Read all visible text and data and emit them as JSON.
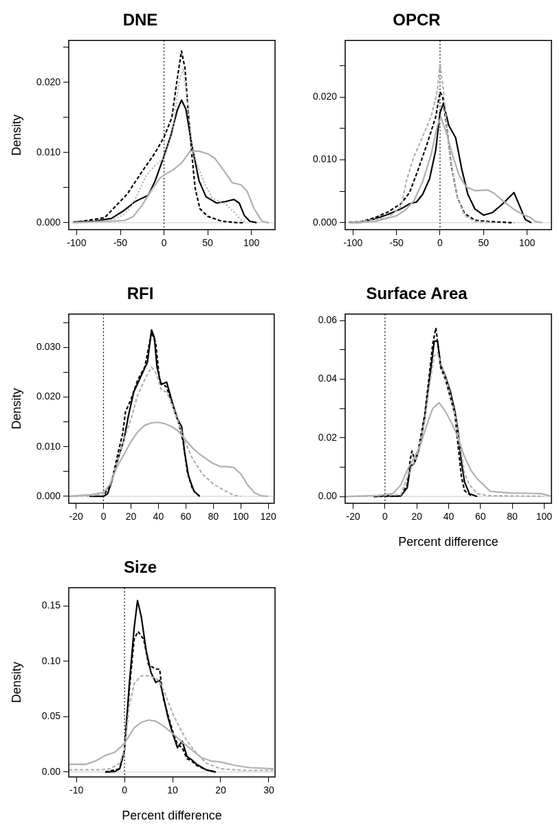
{
  "chart_data": [
    {
      "type": "line",
      "title": "DNE",
      "ylabel": "Density",
      "xlim": [
        -109,
        127
      ],
      "ylim": [
        -0.001,
        0.026
      ],
      "xticks": [
        -100,
        -50,
        0,
        50,
        100
      ],
      "yticks": [
        {
          "value": 0,
          "label": "0.000"
        },
        {
          "value": 0.005,
          "label": null
        },
        {
          "value": 0.01,
          "label": "0.010"
        },
        {
          "value": 0.015,
          "label": null
        },
        {
          "value": 0.02,
          "label": "0.020"
        },
        {
          "value": 0.025,
          "label": null
        }
      ],
      "ref_lines": [
        {
          "axis": "y",
          "value": 0,
          "color": "#d3d3d3",
          "line_style": "solid"
        },
        {
          "axis": "x",
          "value": 0,
          "color": "#000000",
          "line_style": "dotted"
        }
      ],
      "series": [
        {
          "color": "#b0b0b0",
          "line_style": "solid",
          "x": [
            -104,
            -60,
            -45,
            -35,
            -25,
            -15,
            -5,
            0,
            10,
            20,
            30,
            40,
            50,
            58,
            68,
            78,
            88,
            95,
            103,
            112,
            120
          ],
          "values": [
            0,
            0.0002,
            0.0003,
            0.0009,
            0.0025,
            0.0045,
            0.0063,
            0.0068,
            0.0075,
            0.0085,
            0.0102,
            0.0102,
            0.0098,
            0.0092,
            0.0075,
            0.0057,
            0.0054,
            0.0045,
            0.002,
            0.0002,
            0
          ]
        },
        {
          "color": "#b0b0b0",
          "line_style": "dotted",
          "x": [
            -104,
            -60,
            -45,
            -35,
            -20,
            -10,
            0,
            10,
            17,
            22,
            27,
            32,
            37,
            45,
            55,
            70,
            80,
            88,
            95
          ],
          "values": [
            0,
            0.0003,
            0.0012,
            0.0028,
            0.0068,
            0.0082,
            0.0092,
            0.013,
            0.02,
            0.022,
            0.017,
            0.011,
            0.0086,
            0.006,
            0.0035,
            0.0027,
            0.0015,
            0.0004,
            0
          ]
        },
        {
          "color": "#000000",
          "line_style": "solid",
          "x": [
            -104,
            -80,
            -60,
            -45,
            -33,
            -25,
            -18,
            -10,
            0,
            8,
            15,
            20,
            25,
            32,
            40,
            48,
            60,
            70,
            80,
            86,
            92,
            98,
            106
          ],
          "values": [
            0.0001,
            0.0002,
            0.0006,
            0.0018,
            0.003,
            0.0035,
            0.0039,
            0.006,
            0.0095,
            0.0125,
            0.016,
            0.0175,
            0.0162,
            0.011,
            0.006,
            0.0037,
            0.0028,
            0.003,
            0.0033,
            0.0028,
            0.001,
            0.0002,
            0
          ]
        },
        {
          "color": "#000000",
          "line_style": "dashed",
          "x": [
            -104,
            -68,
            -42,
            -24,
            -10.5,
            0,
            9,
            14.5,
            20,
            24,
            27.6,
            31.6,
            35.5,
            41,
            50,
            66,
            84,
            92
          ],
          "values": [
            0,
            0.0007,
            0.0041,
            0.0075,
            0.0099,
            0.0122,
            0.015,
            0.02,
            0.0245,
            0.022,
            0.016,
            0.01,
            0.005,
            0.002,
            0.0009,
            0.0002,
            0,
            0
          ]
        }
      ]
    },
    {
      "type": "line",
      "title": "OPCR",
      "xlim": [
        -109,
        128
      ],
      "ylim": [
        -0.0011,
        0.029
      ],
      "xticks": [
        -100,
        -50,
        0,
        50,
        100
      ],
      "yticks": [
        {
          "value": 0,
          "label": "0.000"
        },
        {
          "value": 0.005,
          "label": null
        },
        {
          "value": 0.01,
          "label": "0.010"
        },
        {
          "value": 0.015,
          "label": null
        },
        {
          "value": 0.02,
          "label": "0.020"
        },
        {
          "value": 0.025,
          "label": null
        }
      ],
      "ref_lines": [
        {
          "axis": "y",
          "value": 0,
          "color": "#d3d3d3",
          "line_style": "solid"
        },
        {
          "axis": "x",
          "value": 0,
          "color": "#000000",
          "line_style": "dotted"
        }
      ],
      "series": [
        {
          "color": "#b0b0b0",
          "line_style": "solid",
          "x": [
            -105,
            -75,
            -50,
            -40,
            -30,
            -20,
            -10,
            -3,
            1,
            8,
            15,
            22,
            30,
            40,
            55,
            62,
            72,
            85,
            95,
            103,
            110,
            117
          ],
          "values": [
            0,
            0.0002,
            0.0011,
            0.002,
            0.0035,
            0.0065,
            0.011,
            0.0155,
            0.0168,
            0.014,
            0.0105,
            0.0075,
            0.0057,
            0.0051,
            0.0052,
            0.0047,
            0.0035,
            0.0021,
            0.0013,
            0.0009,
            0.0002,
            0
          ]
        },
        {
          "color": "#b0b0b0",
          "line_style": "dashed",
          "x": [
            -100,
            -60,
            -45,
            -38,
            -30,
            -20,
            -10,
            -3,
            0,
            4,
            10,
            15,
            20,
            28,
            40,
            60
          ],
          "values": [
            0,
            0.0008,
            0.0025,
            0.007,
            0.0105,
            0.0137,
            0.017,
            0.021,
            0.0254,
            0.021,
            0.012,
            0.0075,
            0.004,
            0.0012,
            0.0002,
            0
          ]
        },
        {
          "color": "#000000",
          "line_style": "solid",
          "x": [
            -105,
            -90,
            -75,
            -60,
            -45,
            -35,
            -27,
            -20,
            -12,
            -5,
            0,
            4,
            10,
            18,
            25,
            32,
            40,
            50,
            60,
            72,
            85,
            92,
            98,
            105
          ],
          "values": [
            0,
            0.0001,
            0.0006,
            0.0013,
            0.0022,
            0.003,
            0.0033,
            0.0045,
            0.007,
            0.0115,
            0.0175,
            0.019,
            0.0155,
            0.0135,
            0.0085,
            0.0045,
            0.0022,
            0.0012,
            0.0016,
            0.003,
            0.0048,
            0.0025,
            0.0005,
            0
          ]
        },
        {
          "color": "#000000",
          "line_style": "dashed",
          "x": [
            -105,
            -90,
            -75,
            -60,
            -45,
            -35,
            -25,
            -15,
            -5,
            0,
            3,
            8,
            13,
            20,
            28,
            40,
            55,
            70,
            85
          ],
          "values": [
            0,
            0.0002,
            0.0008,
            0.0017,
            0.003,
            0.0048,
            0.0085,
            0.0125,
            0.0168,
            0.0208,
            0.02,
            0.015,
            0.009,
            0.004,
            0.0015,
            0.0004,
            0.0002,
            0.0001,
            0
          ]
        }
      ]
    },
    {
      "type": "line",
      "title": "RFI",
      "ylabel": "Density",
      "xlim": [
        -25.3,
        124.3
      ],
      "ylim": [
        -0.0014,
        0.0367
      ],
      "xticks": [
        -20,
        0,
        20,
        40,
        60,
        80,
        100,
        120
      ],
      "yticks": [
        {
          "value": 0,
          "label": "0.000"
        },
        {
          "value": 0.005,
          "label": null
        },
        {
          "value": 0.01,
          "label": "0.010"
        },
        {
          "value": 0.015,
          "label": null
        },
        {
          "value": 0.02,
          "label": "0.020"
        },
        {
          "value": 0.025,
          "label": null
        },
        {
          "value": 0.03,
          "label": "0.030"
        },
        {
          "value": 0.035,
          "label": null
        }
      ],
      "ref_lines": [
        {
          "axis": "y",
          "value": 0,
          "color": "#d3d3d3",
          "line_style": "solid"
        },
        {
          "axis": "x",
          "value": 0,
          "color": "#000000",
          "line_style": "dotted"
        }
      ],
      "series": [
        {
          "color": "#b0b0b0",
          "line_style": "solid",
          "x": [
            -25,
            -10,
            0,
            5,
            10,
            15,
            20,
            25,
            30,
            35,
            40,
            45,
            50,
            55,
            60,
            65,
            70,
            75,
            80,
            85,
            90,
            95,
            100,
            105,
            110,
            115,
            120
          ],
          "values": [
            0,
            0.0003,
            0.0008,
            0.0025,
            0.006,
            0.0085,
            0.011,
            0.013,
            0.0143,
            0.0148,
            0.0149,
            0.0146,
            0.014,
            0.013,
            0.0113,
            0.0097,
            0.0085,
            0.0075,
            0.0066,
            0.006,
            0.006,
            0.0058,
            0.0045,
            0.0023,
            0.0007,
            0.0001,
            0
          ]
        },
        {
          "color": "#b0b0b0",
          "line_style": "dashed",
          "x": [
            -25,
            -10,
            0,
            5,
            10,
            15,
            20,
            25,
            30,
            35,
            38,
            42,
            46,
            50,
            55,
            60,
            65,
            72,
            80,
            88,
            95,
            100
          ],
          "values": [
            0,
            0.0001,
            0.0005,
            0.0025,
            0.007,
            0.0115,
            0.0155,
            0.0205,
            0.0235,
            0.026,
            0.025,
            0.0215,
            0.021,
            0.0185,
            0.0145,
            0.0105,
            0.0075,
            0.0045,
            0.0025,
            0.0012,
            0.0002,
            0
          ]
        },
        {
          "color": "#000000",
          "line_style": "solid",
          "x": [
            -10,
            0,
            3,
            6,
            10,
            15,
            18,
            22,
            27,
            32,
            35,
            37,
            39,
            42,
            46,
            50,
            54,
            57,
            59,
            62,
            66,
            70
          ],
          "values": [
            0,
            0,
            0.0005,
            0.003,
            0.007,
            0.0115,
            0.016,
            0.021,
            0.024,
            0.027,
            0.0335,
            0.032,
            0.026,
            0.0225,
            0.023,
            0.019,
            0.0155,
            0.014,
            0.009,
            0.004,
            0.001,
            0
          ]
        },
        {
          "color": "#000000",
          "line_style": "dashed",
          "x": [
            -10,
            0,
            6,
            10,
            14,
            16,
            20,
            25,
            30,
            35,
            38,
            41,
            46,
            50,
            55,
            58,
            61,
            65,
            70
          ],
          "values": [
            0,
            0,
            0.003,
            0.008,
            0.0127,
            0.017,
            0.0195,
            0.0235,
            0.026,
            0.033,
            0.031,
            0.023,
            0.022,
            0.0185,
            0.0145,
            0.011,
            0.005,
            0.0013,
            0
          ]
        }
      ]
    },
    {
      "type": "line",
      "title": "Surface Area",
      "xlabel": "Percent difference",
      "xlim": [
        -25,
        104.6
      ],
      "ylim": [
        -0.0023,
        0.0622
      ],
      "xticks": [
        -20,
        0,
        20,
        40,
        60,
        80,
        100
      ],
      "yticks": [
        {
          "value": 0,
          "label": "0.00"
        },
        {
          "value": 0.01,
          "label": null
        },
        {
          "value": 0.02,
          "label": "0.02"
        },
        {
          "value": 0.03,
          "label": null
        },
        {
          "value": 0.04,
          "label": "0.04"
        },
        {
          "value": 0.05,
          "label": null
        },
        {
          "value": 0.06,
          "label": "0.06"
        }
      ],
      "ref_lines": [
        {
          "axis": "y",
          "value": 0,
          "color": "#d3d3d3",
          "line_style": "solid"
        },
        {
          "axis": "x",
          "value": 0,
          "color": "#000000",
          "line_style": "dotted"
        }
      ],
      "series": [
        {
          "color": "#b0b0b0",
          "line_style": "solid",
          "x": [
            -25,
            -5,
            5,
            10,
            14,
            18,
            22,
            26,
            30,
            34,
            38,
            42,
            46,
            50,
            54,
            58,
            62,
            66,
            72,
            80,
            90,
            98,
            104
          ],
          "values": [
            0,
            0.0003,
            0.001,
            0.004,
            0.009,
            0.013,
            0.017,
            0.024,
            0.03,
            0.032,
            0.029,
            0.025,
            0.02,
            0.0135,
            0.009,
            0.006,
            0.004,
            0.0018,
            0.0015,
            0.0012,
            0.0011,
            0.001,
            0.0002
          ]
        },
        {
          "color": "#b0b0b0",
          "line_style": "dashed",
          "x": [
            -25,
            10,
            15,
            20,
            25,
            28,
            31,
            33,
            36,
            40,
            44,
            47,
            50,
            53,
            58,
            65,
            80,
            100
          ],
          "values": [
            0,
            0.0006,
            0.008,
            0.0135,
            0.026,
            0.038,
            0.048,
            0.049,
            0.044,
            0.037,
            0.028,
            0.018,
            0.008,
            0.004,
            0.001,
            0.0003,
            0.0002,
            0.0001
          ]
        },
        {
          "color": "#000000",
          "line_style": "solid",
          "x": [
            -7,
            0,
            5,
            10,
            14,
            16,
            18,
            20,
            22,
            25,
            28,
            31,
            33,
            35,
            38,
            41,
            44,
            46,
            48,
            50,
            53,
            58
          ],
          "values": [
            0,
            0.0003,
            0.0001,
            0.0002,
            0.003,
            0.0105,
            0.011,
            0.0135,
            0.0175,
            0.027,
            0.04,
            0.053,
            0.053,
            0.045,
            0.041,
            0.036,
            0.029,
            0.022,
            0.012,
            0.005,
            0.001,
            0
          ]
        },
        {
          "color": "#000000",
          "line_style": "dashed",
          "x": [
            -7,
            10,
            14,
            16,
            17,
            19,
            21,
            25,
            28,
            30,
            32,
            33,
            35,
            38,
            41,
            44,
            46,
            48,
            50,
            55
          ],
          "values": [
            0,
            0.0002,
            0.004,
            0.013,
            0.0155,
            0.012,
            0.016,
            0.028,
            0.042,
            0.052,
            0.0575,
            0.053,
            0.044,
            0.04,
            0.034,
            0.028,
            0.017,
            0.007,
            0.002,
            0
          ]
        }
      ]
    },
    {
      "type": "line",
      "title": "Size",
      "xlabel": "Percent difference",
      "ylabel": "Density",
      "xlim": [
        -11.6,
        31.3
      ],
      "ylim": [
        -0.0044,
        0.1666
      ],
      "xticks": [
        -10,
        0,
        10,
        20,
        30
      ],
      "yticks": [
        {
          "value": 0,
          "label": "0.00"
        },
        {
          "value": 0.05,
          "label": "0.05"
        },
        {
          "value": 0.1,
          "label": "0.10"
        },
        {
          "value": 0.15,
          "label": "0.15"
        }
      ],
      "ref_lines": [
        {
          "axis": "y",
          "value": 0,
          "color": "#d3d3d3",
          "line_style": "solid"
        },
        {
          "axis": "x",
          "value": 0,
          "color": "#000000",
          "line_style": "dotted"
        }
      ],
      "series": [
        {
          "color": "#b0b0b0",
          "line_style": "solid",
          "x": [
            -11.6,
            -8,
            -6,
            -4,
            -2,
            0,
            1,
            2,
            3.5,
            5,
            6.5,
            8,
            10,
            12,
            14,
            16,
            18,
            20,
            23,
            26,
            31
          ],
          "values": [
            0.007,
            0.007,
            0.01,
            0.015,
            0.018,
            0.026,
            0.033,
            0.04,
            0.045,
            0.047,
            0.046,
            0.042,
            0.035,
            0.027,
            0.02,
            0.013,
            0.01,
            0.009,
            0.006,
            0.004,
            0.003
          ]
        },
        {
          "color": "#b0b0b0",
          "line_style": "dashed",
          "x": [
            -11.6,
            -8,
            -5,
            -3,
            -1,
            0,
            1,
            2,
            3.5,
            5,
            6.5,
            7.5,
            8.5,
            10,
            11.5,
            13,
            15,
            17,
            20,
            25,
            31
          ],
          "values": [
            0.002,
            0.002,
            0.002,
            0.003,
            0.008,
            0.02,
            0.06,
            0.08,
            0.087,
            0.087,
            0.085,
            0.08,
            0.07,
            0.053,
            0.04,
            0.028,
            0.017,
            0.008,
            0.003,
            0.0015,
            0.0015
          ]
        },
        {
          "color": "#000000",
          "line_style": "solid",
          "x": [
            -4,
            -2,
            -1,
            0,
            1,
            2,
            2.7,
            3.5,
            4.5,
            5.5,
            6.5,
            7.3,
            8,
            9,
            10,
            11,
            12,
            13,
            14,
            15,
            17,
            19
          ],
          "values": [
            0,
            0.0005,
            0.003,
            0.02,
            0.08,
            0.13,
            0.155,
            0.14,
            0.11,
            0.09,
            0.081,
            0.083,
            0.07,
            0.05,
            0.035,
            0.022,
            0.028,
            0.014,
            0.011,
            0.007,
            0.002,
            0
          ]
        },
        {
          "color": "#000000",
          "line_style": "dashed",
          "x": [
            -4,
            -1,
            0,
            1,
            2,
            2.8,
            4,
            5,
            6.5,
            7.3,
            8,
            9,
            10,
            11,
            12,
            13,
            14,
            15,
            17,
            19
          ],
          "values": [
            0,
            0.003,
            0.02,
            0.075,
            0.12,
            0.127,
            0.12,
            0.097,
            0.093,
            0.093,
            0.068,
            0.052,
            0.037,
            0.025,
            0.022,
            0.012,
            0.01,
            0.006,
            0.002,
            0
          ]
        }
      ]
    }
  ]
}
